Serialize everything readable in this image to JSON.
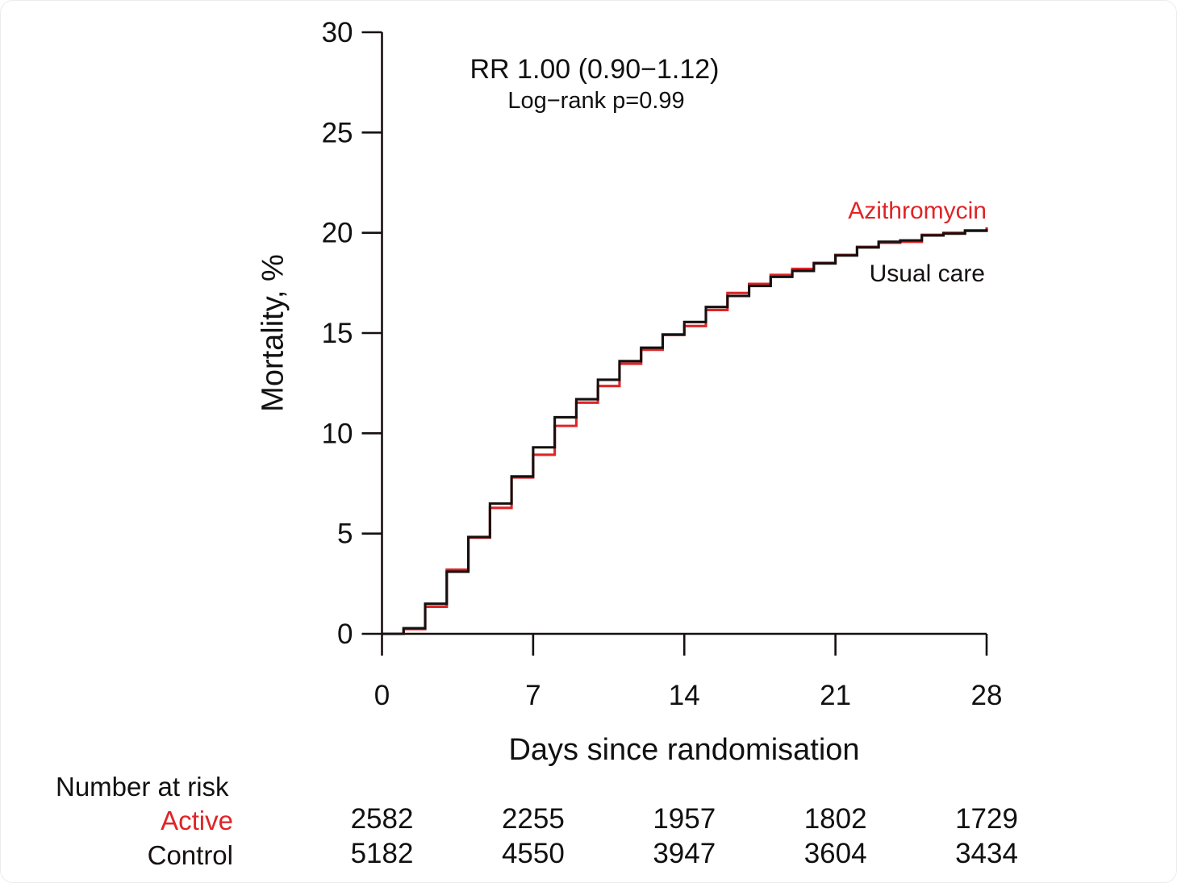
{
  "chart_data": {
    "type": "line",
    "subtype": "kaplan-meier-cumulative-incidence-step",
    "title": "",
    "xlabel": "Days since randomisation",
    "ylabel": "Mortality, %",
    "xlim": [
      0,
      28
    ],
    "ylim": [
      0,
      30
    ],
    "x_ticks": [
      "0",
      "7",
      "14",
      "21",
      "28"
    ],
    "x_tick_values": [
      0,
      7,
      14,
      21,
      28
    ],
    "y_ticks": [
      "0",
      "5",
      "10",
      "15",
      "20",
      "25",
      "30"
    ],
    "y_tick_values": [
      0,
      5,
      10,
      15,
      20,
      25,
      30
    ],
    "grid": false,
    "annotations": [
      "RR 1.00 (0.90−1.12)",
      "Log−rank p=0.99"
    ],
    "x": [
      0,
      1,
      2,
      3,
      4,
      5,
      6,
      7,
      8,
      9,
      10,
      11,
      12,
      13,
      14,
      15,
      16,
      17,
      18,
      19,
      20,
      21,
      22,
      23,
      24,
      25,
      26,
      27,
      28
    ],
    "series": [
      {
        "name": "Azithromycin",
        "color": "#e02427",
        "values": [
          0,
          0.24,
          1.35,
          3.2,
          4.8,
          6.28,
          7.8,
          8.93,
          10.37,
          11.53,
          12.36,
          13.47,
          14.17,
          14.9,
          15.35,
          16.15,
          17.0,
          17.45,
          17.9,
          18.2,
          18.5,
          18.9,
          19.3,
          19.5,
          19.55,
          19.9,
          20.0,
          20.12,
          20.28
        ]
      },
      {
        "name": "Usual care",
        "color": "#161010",
        "values": [
          0,
          0.28,
          1.5,
          3.1,
          4.83,
          6.5,
          7.85,
          9.3,
          10.8,
          11.7,
          12.67,
          13.6,
          14.27,
          14.93,
          15.55,
          16.3,
          16.85,
          17.35,
          17.8,
          18.1,
          18.47,
          18.87,
          19.27,
          19.55,
          19.62,
          19.87,
          19.96,
          20.1,
          20.2
        ]
      }
    ],
    "risk_table": {
      "title": "Number at risk",
      "days": [
        0,
        7,
        14,
        21,
        28
      ],
      "rows": [
        {
          "label": "Active",
          "color": "#e02427",
          "values": [
            "2582",
            "2255",
            "1957",
            "1802",
            "1729"
          ]
        },
        {
          "label": "Control",
          "color": "#161010",
          "values": [
            "5182",
            "4550",
            "3947",
            "3604",
            "3434"
          ]
        }
      ]
    },
    "colors": {
      "active_red": "#e02427",
      "control_black": "#161010"
    }
  }
}
